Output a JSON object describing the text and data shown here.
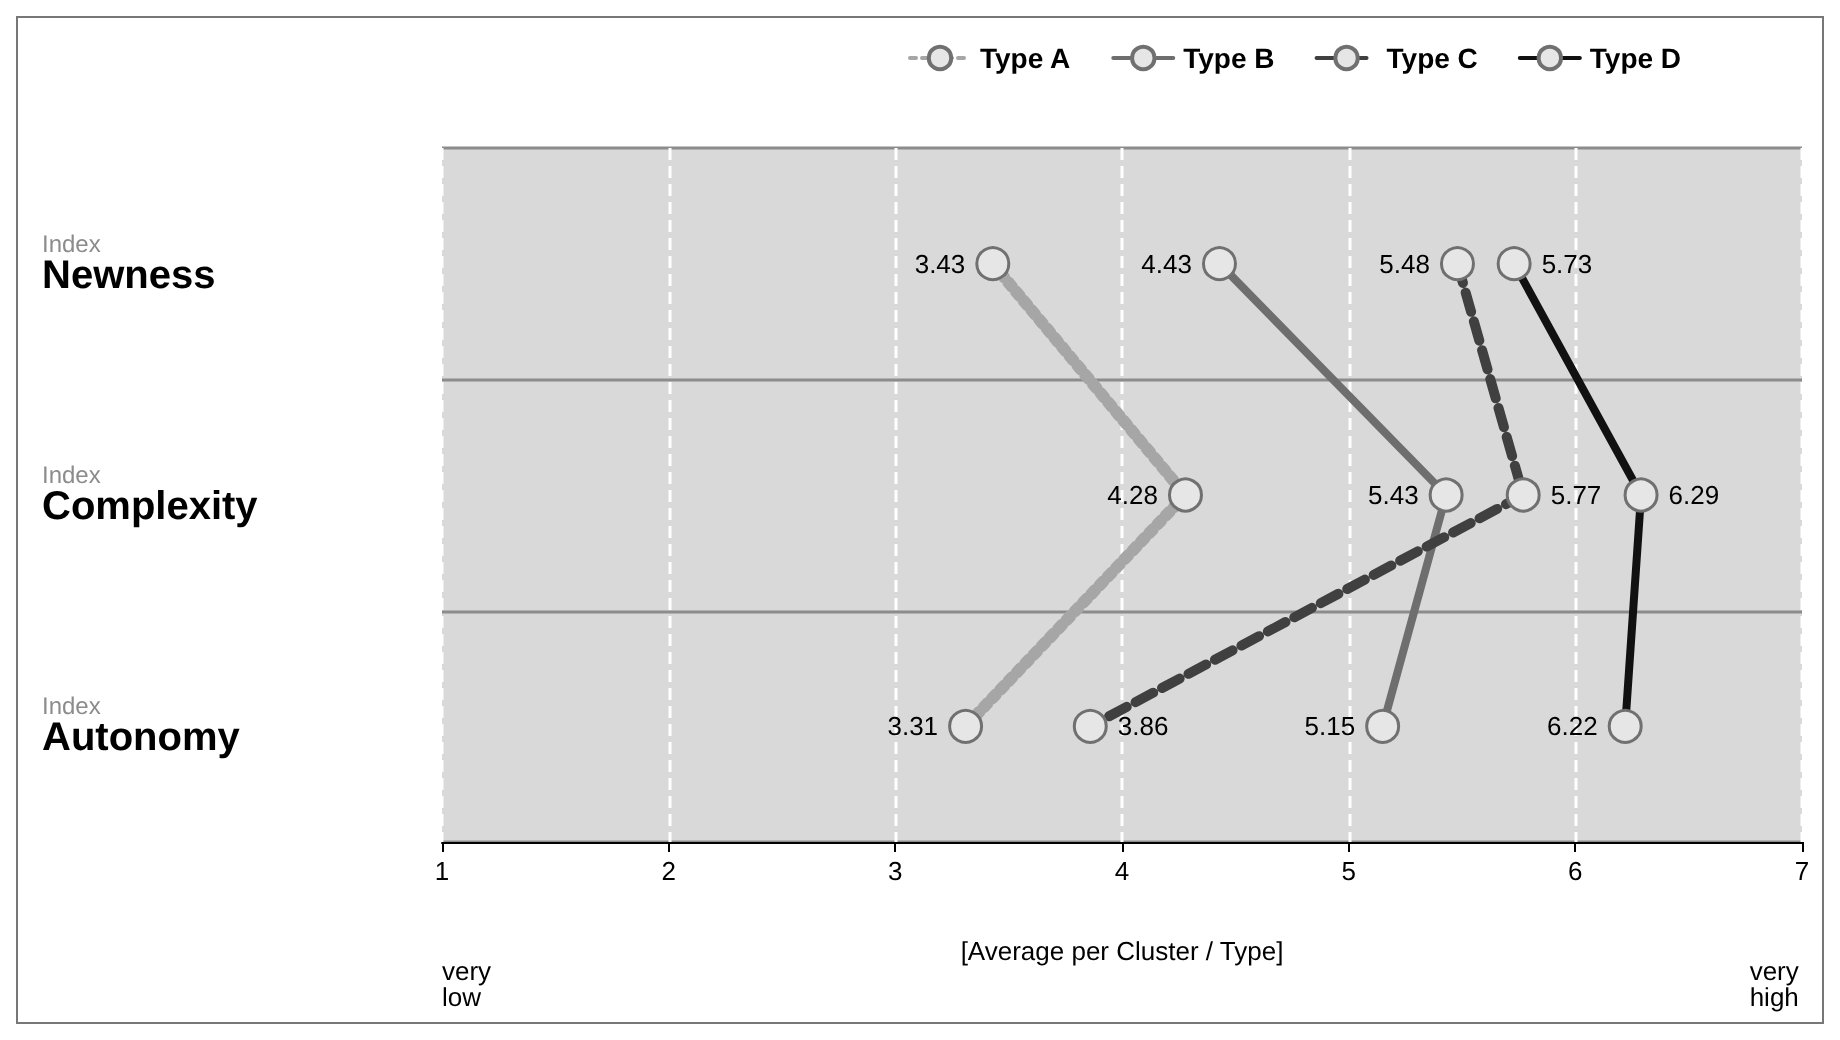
{
  "chart_data": {
    "type": "line",
    "orientation": "horizontal",
    "xlabel": "[Average per Cluster / Type]",
    "categories": [
      "Index\nNewness",
      "Index\nComplexity",
      "Index\nAutonomy"
    ],
    "series": [
      {
        "name": "Type A",
        "color": "#a6a6a6",
        "line_style": "dotted",
        "values": [
          3.43,
          4.28,
          3.31
        ]
      },
      {
        "name": "Type B",
        "color": "#6e6e6e",
        "line_style": "solid",
        "values": [
          4.43,
          5.43,
          5.15
        ]
      },
      {
        "name": "Type C",
        "color": "#404040",
        "line_style": "dashed",
        "values": [
          5.48,
          5.77,
          3.86
        ]
      },
      {
        "name": "Type D",
        "color": "#111111",
        "line_style": "solid",
        "values": [
          5.73,
          6.29,
          6.22
        ]
      }
    ],
    "xlim": [
      1,
      7
    ],
    "xticks": [
      1,
      2,
      3,
      4,
      5,
      6,
      7
    ],
    "grid": true,
    "legend": "top",
    "marker": "circle",
    "data_labels": true,
    "annotations": [
      "very low",
      "very high"
    ]
  }
}
